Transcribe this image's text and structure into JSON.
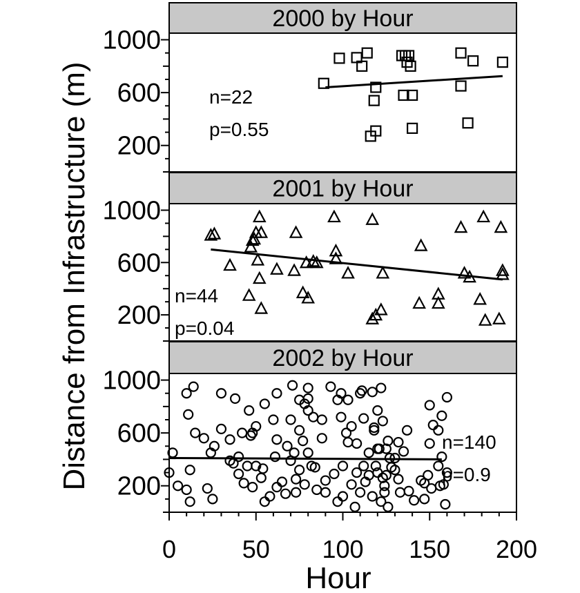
{
  "chart_data": {
    "type": "scatter",
    "ylabel": "Distance from Infrastructure (m)",
    "xlabel": "Hour",
    "xlim": [
      0,
      200
    ],
    "ylim": [
      0,
      1050
    ],
    "xticks": [
      "0",
      "50",
      "100",
      "150",
      "200"
    ],
    "yticks": [
      "200",
      "600",
      "1000"
    ],
    "grid": false,
    "panels": [
      {
        "title": "2000  by Hour",
        "marker": "square",
        "n_label": "n=22",
        "p_label": "p=0.55",
        "fit": {
          "x": [
            90,
            192
          ],
          "y": [
            640,
            725
          ]
        },
        "points": {
          "x": [
            89,
            98,
            108,
            111,
            114,
            116,
            118,
            119,
            134,
            136,
            137,
            138,
            139,
            140,
            135,
            168,
            172,
            175,
            192,
            168,
            119,
            140
          ],
          "y": [
            670,
            860,
            865,
            800,
            900,
            270,
            540,
            310,
            880,
            880,
            830,
            880,
            800,
            330,
            580,
            900,
            370,
            840,
            830,
            650,
            640,
            580
          ]
        }
      },
      {
        "title": "2001  by Hour",
        "marker": "triangle",
        "n_label": "n=44",
        "p_label": "p=0.04",
        "fit": {
          "x": [
            24,
            192
          ],
          "y": [
            700,
            470
          ]
        },
        "points": {
          "x": [
            24,
            26,
            35,
            46,
            47,
            48,
            49,
            50,
            51,
            52,
            52,
            53,
            53,
            62,
            72,
            73,
            77,
            79,
            80,
            83,
            85,
            95,
            96,
            96,
            103,
            117,
            117,
            119,
            122,
            123,
            144,
            145,
            155,
            155,
            168,
            170,
            173,
            179,
            181,
            182,
            190,
            191,
            192,
            192
          ],
          "y": [
            810,
            820,
            580,
            350,
            720,
            770,
            780,
            830,
            620,
            480,
            950,
            830,
            250,
            550,
            540,
            830,
            370,
            600,
            330,
            610,
            600,
            950,
            690,
            630,
            520,
            170,
            930,
            200,
            240,
            520,
            290,
            730,
            290,
            360,
            870,
            520,
            490,
            320,
            950,
            160,
            170,
            870,
            510,
            540
          ]
        }
      },
      {
        "title": "2002  by Hour",
        "marker": "circle",
        "n_label": "n=140",
        "p_label": "p=0.9",
        "fit": {
          "x": [
            0,
            157
          ],
          "y": [
            410,
            400
          ]
        },
        "points": {
          "x": [
            0,
            2,
            5,
            10,
            10,
            11,
            12,
            14,
            15,
            22,
            24,
            25,
            26,
            30,
            30,
            35,
            37,
            38,
            40,
            40,
            43,
            45,
            47,
            48,
            48,
            50,
            50,
            53,
            55,
            58,
            60,
            61,
            62,
            62,
            65,
            67,
            70,
            70,
            72,
            73,
            73,
            75,
            75,
            77,
            78,
            78,
            80,
            80,
            80,
            82,
            83,
            85,
            88,
            90,
            93,
            95,
            97,
            99,
            99,
            100,
            100,
            102,
            103,
            105,
            105,
            108,
            108,
            110,
            110,
            111,
            112,
            113,
            115,
            115,
            117,
            117,
            118,
            119,
            120,
            120,
            120,
            121,
            122,
            123,
            123,
            124,
            124,
            125,
            125,
            126,
            127,
            130,
            130,
            132,
            132,
            133,
            135,
            145,
            147,
            147,
            149,
            150,
            151,
            152,
            155,
            155,
            157,
            157,
            158,
            160,
            160,
            12,
            20,
            35,
            42,
            55,
            68,
            80,
            90,
            107,
            118,
            128,
            138,
            150,
            156,
            62,
            75,
            84,
            97,
            112,
            122,
            137,
            159,
            46,
            71,
            103,
            126,
            54,
            88,
            141
          ],
          "y": [
            300,
            450,
            200,
            170,
            900,
            740,
            320,
            950,
            600,
            180,
            450,
            100,
            500,
            900,
            630,
            550,
            370,
            860,
            420,
            290,
            220,
            350,
            580,
            600,
            190,
            650,
            350,
            260,
            820,
            120,
            700,
            420,
            900,
            550,
            230,
            140,
            700,
            390,
            450,
            250,
            150,
            320,
            620,
            540,
            210,
            820,
            940,
            450,
            860,
            350,
            720,
            170,
            560,
            150,
            950,
            290,
            850,
            720,
            900,
            120,
            350,
            600,
            850,
            650,
            210,
            520,
            300,
            150,
            900,
            920,
            350,
            230,
            450,
            280,
            910,
            120,
            640,
            350,
            480,
            300,
            770,
            480,
            940,
            690,
            260,
            150,
            200,
            480,
            280,
            540,
            410,
            410,
            320,
            250,
            530,
            150,
            460,
            240,
            220,
            100,
            280,
            520,
            180,
            660,
            620,
            350,
            730,
            420,
            210,
            870,
            300,
            80,
            560,
            390,
            600,
            80,
            500,
            770,
            240,
            40,
            620,
            340,
            160,
            810,
            200,
            190,
            850,
            340,
            80,
            710,
            80,
            620,
            60,
            770,
            960,
            530,
            40,
            330,
            700,
            90
          ]
        }
      }
    ]
  }
}
